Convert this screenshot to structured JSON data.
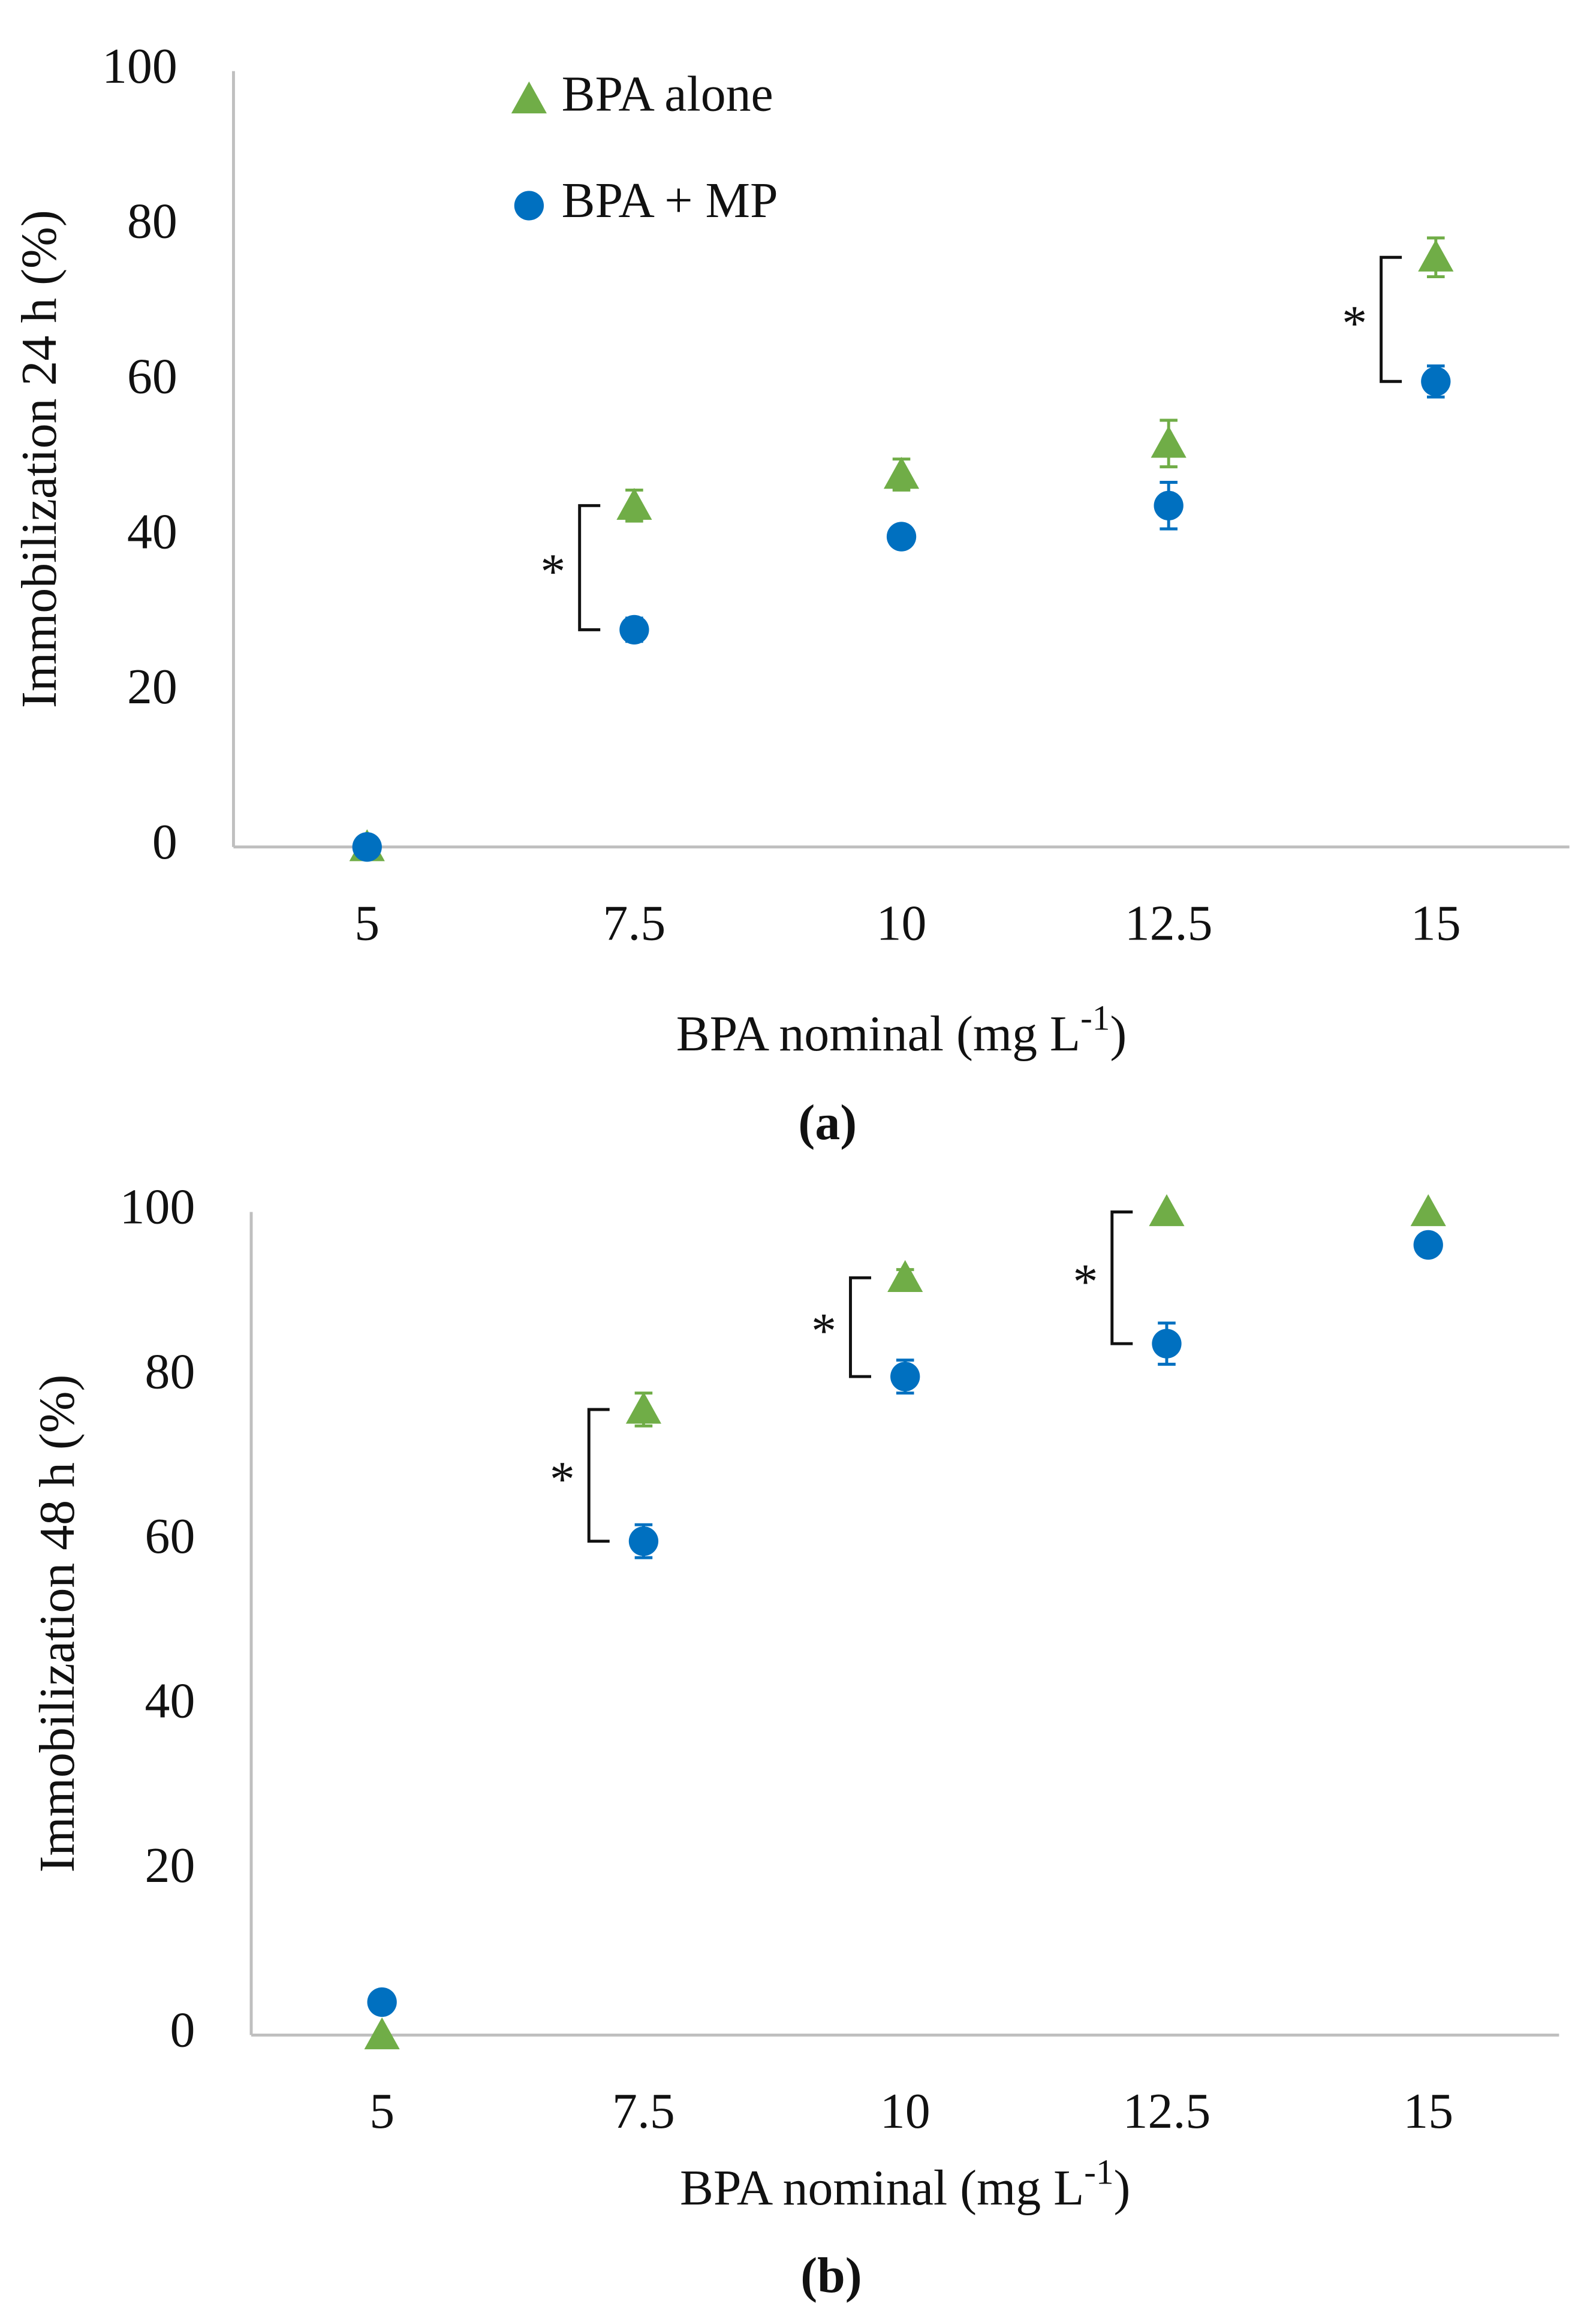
{
  "chart_data": [
    {
      "type": "scatter",
      "y_label": "Immobilization 24 h (%)",
      "x_label": "BPA nominal (mg L",
      "x_label_sup": "-1",
      "x_label_end": ")",
      "caption": "(a)",
      "categories": [
        "5",
        "7.5",
        "10",
        "12.5",
        "15"
      ],
      "series": [
        {
          "name": "BPA alone",
          "marker": "triangle",
          "color": "#70ad47",
          "values": [
            0,
            44,
            48,
            52,
            76
          ],
          "errors": [
            0,
            2,
            2,
            3,
            2.5
          ]
        },
        {
          "name": "BPA + MP",
          "marker": "circle",
          "color": "#0070c0",
          "values": [
            0,
            28,
            40,
            44,
            60
          ],
          "errors": [
            0,
            1.5,
            0.5,
            3,
            2
          ]
        }
      ],
      "ylim": [
        0,
        100
      ],
      "yticks": [
        0,
        20,
        40,
        60,
        80,
        100
      ],
      "legend": true,
      "annotations": [
        {
          "text": "*",
          "category": "7.5"
        },
        {
          "text": "*",
          "category": "15"
        }
      ]
    },
    {
      "type": "scatter",
      "y_label": "Immobilization 48 h (%)",
      "x_label": "BPA nominal (mg L",
      "x_label_sup": "-1",
      "x_label_end": ")",
      "caption": "(b)",
      "categories": [
        "5",
        "7.5",
        "10",
        "12.5",
        "15"
      ],
      "series": [
        {
          "marker": "triangle",
          "color": "#70ad47",
          "values": [
            0,
            76,
            92,
            100,
            100
          ],
          "errors": [
            0,
            2,
            1,
            0,
            0
          ]
        },
        {
          "marker": "circle",
          "color": "#0070c0",
          "values": [
            4,
            60,
            80,
            84,
            96
          ],
          "errors": [
            0,
            2,
            2,
            2.5,
            0
          ]
        }
      ],
      "ylim": [
        0,
        100
      ],
      "yticks": [
        0,
        20,
        40,
        60,
        80,
        100
      ],
      "legend": false,
      "annotations": [
        {
          "text": "*",
          "category": "7.5"
        },
        {
          "text": "*",
          "category": "10"
        },
        {
          "text": "*",
          "category": "12.5"
        }
      ]
    }
  ]
}
